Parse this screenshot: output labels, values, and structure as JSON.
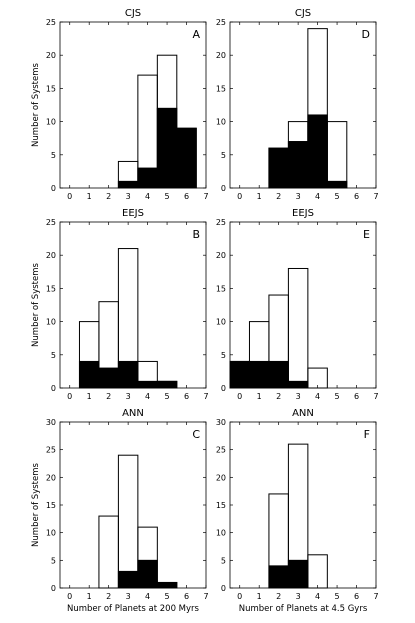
{
  "chart_data": [
    {
      "type": "bar",
      "panel": "A",
      "title": "CJS",
      "ylabel": "Number of Systems",
      "xlabel": "",
      "xlim": [
        -0.5,
        7
      ],
      "ylim": [
        0,
        25
      ],
      "x": [
        0,
        1,
        2,
        3,
        4,
        5,
        6
      ],
      "series": [
        {
          "values": [
            0,
            0,
            0,
            4,
            17,
            20,
            9
          ],
          "fill": "none"
        },
        {
          "values": [
            0,
            0,
            0,
            1,
            3,
            12,
            9
          ],
          "fill": "#000000"
        }
      ]
    },
    {
      "type": "bar",
      "panel": "D",
      "title": "CJS",
      "ylabel": "",
      "xlabel": "",
      "xlim": [
        -0.5,
        7
      ],
      "ylim": [
        0,
        25
      ],
      "x": [
        0,
        1,
        2,
        3,
        4,
        5,
        6
      ],
      "series": [
        {
          "values": [
            0,
            0,
            6,
            10,
            24,
            10,
            0
          ],
          "fill": "none"
        },
        {
          "values": [
            0,
            0,
            6,
            7,
            11,
            1,
            0
          ],
          "fill": "#000000"
        }
      ]
    },
    {
      "type": "bar",
      "panel": "B",
      "title": "EEJS",
      "ylabel": "Number of Systems",
      "xlabel": "",
      "xlim": [
        -0.5,
        7
      ],
      "ylim": [
        0,
        25
      ],
      "x": [
        0,
        1,
        2,
        3,
        4,
        5,
        6
      ],
      "series": [
        {
          "values": [
            0,
            10,
            13,
            21,
            4,
            1,
            0
          ],
          "fill": "none"
        },
        {
          "values": [
            0,
            4,
            3,
            4,
            1,
            1,
            0
          ],
          "fill": "#000000"
        }
      ]
    },
    {
      "type": "bar",
      "panel": "E",
      "title": "EEJS",
      "ylabel": "",
      "xlabel": "",
      "xlim": [
        -0.5,
        7
      ],
      "ylim": [
        0,
        25
      ],
      "x": [
        0,
        1,
        2,
        3,
        4,
        5,
        6
      ],
      "series": [
        {
          "values": [
            4,
            10,
            14,
            18,
            3,
            0,
            0
          ],
          "fill": "none"
        },
        {
          "values": [
            4,
            4,
            4,
            1,
            0,
            0,
            0
          ],
          "fill": "#000000"
        }
      ]
    },
    {
      "type": "bar",
      "panel": "C",
      "title": "ANN",
      "ylabel": "Number of Systems",
      "xlabel": "Number of Planets at 200 Myrs",
      "xlim": [
        -0.5,
        7
      ],
      "ylim": [
        0,
        30
      ],
      "x": [
        0,
        1,
        2,
        3,
        4,
        5,
        6
      ],
      "series": [
        {
          "values": [
            0,
            0,
            13,
            24,
            11,
            1,
            0
          ],
          "fill": "none"
        },
        {
          "values": [
            0,
            0,
            0,
            3,
            5,
            1,
            0
          ],
          "fill": "#000000"
        }
      ]
    },
    {
      "type": "bar",
      "panel": "F",
      "title": "ANN",
      "ylabel": "",
      "xlabel": "Number of Planets at 4.5 Gyrs",
      "xlim": [
        -0.5,
        7
      ],
      "ylim": [
        0,
        30
      ],
      "x": [
        0,
        1,
        2,
        3,
        4,
        5,
        6
      ],
      "series": [
        {
          "values": [
            0,
            0,
            17,
            26,
            6,
            0,
            0
          ],
          "fill": "none"
        },
        {
          "values": [
            0,
            0,
            4,
            5,
            0,
            0,
            0
          ],
          "fill": "#000000"
        }
      ]
    }
  ],
  "xticks": [
    0,
    1,
    2,
    3,
    4,
    5,
    6,
    7
  ],
  "yticks_25": [
    0,
    5,
    10,
    15,
    20,
    25
  ],
  "yticks_30": [
    0,
    5,
    10,
    15,
    20,
    25,
    30
  ]
}
